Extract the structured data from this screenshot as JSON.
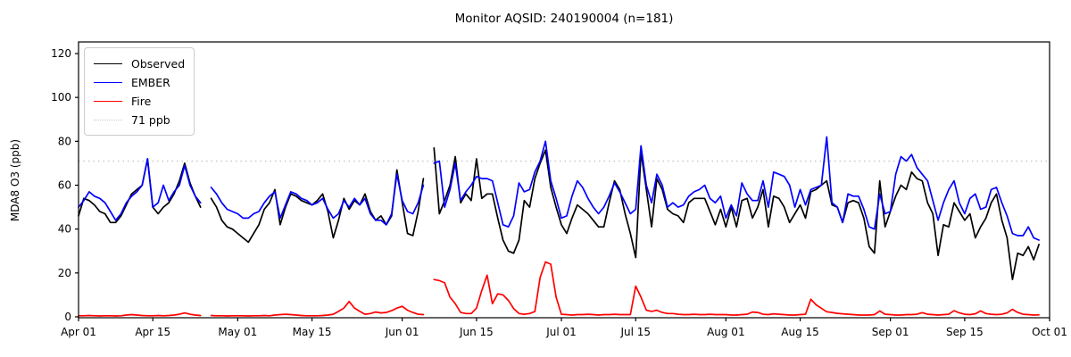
{
  "title": "Monitor AQSID: 240190004 (n=181)",
  "chart_data": {
    "type": "line",
    "title": "Monitor AQSID: 240190004 (n=181)",
    "xlabel": "",
    "ylabel": "MDA8 O3 (ppb)",
    "ylim": [
      0,
      125
    ],
    "yticks": [
      0,
      20,
      40,
      60,
      80,
      100,
      120
    ],
    "grid": false,
    "legend_position": "upper left",
    "x_unit": "day index from Apr 01",
    "xticks": [
      {
        "day": 0,
        "label": "Apr 01"
      },
      {
        "day": 14,
        "label": "Apr 15"
      },
      {
        "day": 30,
        "label": "May 01"
      },
      {
        "day": 44,
        "label": "May 15"
      },
      {
        "day": 61,
        "label": "Jun 01"
      },
      {
        "day": 75,
        "label": "Jun 15"
      },
      {
        "day": 91,
        "label": "Jul 01"
      },
      {
        "day": 105,
        "label": "Jul 15"
      },
      {
        "day": 122,
        "label": "Aug 01"
      },
      {
        "day": 136,
        "label": "Aug 15"
      },
      {
        "day": 153,
        "label": "Sep 01"
      },
      {
        "day": 167,
        "label": "Sep 15"
      },
      {
        "day": 183,
        "label": "Oct 01"
      }
    ],
    "threshold": {
      "value": 71,
      "label": "71 ppb",
      "color": "#c8c8c8",
      "style": "dotted"
    },
    "legend": [
      {
        "label": "Observed",
        "color": "#000000",
        "style": "solid"
      },
      {
        "label": "EMBER",
        "color": "#0000ff",
        "style": "solid"
      },
      {
        "label": "Fire",
        "color": "#ff0000",
        "style": "solid"
      },
      {
        "label": "71 ppb",
        "color": "#c8c8c8",
        "style": "dotted"
      }
    ],
    "series": [
      {
        "name": "Observed",
        "color": "#000000",
        "values": [
          46,
          54,
          53,
          51,
          48,
          47,
          43,
          43,
          46,
          51,
          56,
          58,
          60,
          72,
          50,
          47,
          50,
          52,
          56,
          62,
          70,
          61,
          55,
          50,
          null,
          54,
          50,
          44,
          41,
          40,
          38,
          36,
          34,
          38,
          42,
          49,
          52,
          58,
          42,
          50,
          56,
          55,
          53,
          52,
          51,
          53,
          56,
          48,
          36,
          44,
          54,
          49,
          53,
          51,
          56,
          48,
          44,
          46,
          42,
          46,
          67,
          52,
          38,
          37,
          48,
          63,
          null,
          77,
          47,
          53,
          60,
          73,
          52,
          56,
          53,
          72,
          54,
          56,
          56,
          45,
          35,
          30,
          29,
          35,
          53,
          50,
          63,
          70,
          76,
          59,
          50,
          42,
          38,
          45,
          51,
          49,
          47,
          44,
          41,
          41,
          52,
          62,
          58,
          47,
          38,
          27,
          75,
          58,
          41,
          63,
          58,
          49,
          47,
          46,
          43,
          52,
          54,
          54,
          54,
          48,
          42,
          49,
          41,
          50,
          41,
          53,
          54,
          45,
          50,
          58,
          41,
          55,
          54,
          50,
          43,
          47,
          51,
          45,
          57,
          58,
          60,
          62,
          51,
          50,
          43,
          52,
          53,
          52,
          45,
          32,
          29,
          62,
          41,
          48,
          55,
          60,
          58,
          66,
          63,
          62,
          52,
          47,
          28,
          42,
          41,
          52,
          48,
          44,
          47,
          36,
          41,
          45,
          52,
          56,
          44,
          36,
          17,
          29,
          28,
          32,
          26,
          33
        ]
      },
      {
        "name": "EMBER",
        "color": "#0000ff",
        "values": [
          50,
          53,
          57,
          55,
          54,
          52,
          48,
          44,
          47,
          52,
          55,
          57,
          60,
          72,
          50,
          52,
          60,
          53,
          57,
          60,
          69,
          60,
          55,
          52,
          null,
          59,
          56,
          52,
          49,
          48,
          47,
          45,
          45,
          47,
          48,
          52,
          55,
          57,
          45,
          51,
          57,
          56,
          54,
          53,
          51,
          52,
          54,
          49,
          45,
          47,
          53,
          50,
          54,
          51,
          54,
          47,
          44,
          44,
          42,
          47,
          65,
          53,
          48,
          47,
          52,
          60,
          null,
          70,
          71,
          50,
          58,
          70,
          53,
          57,
          60,
          64,
          63,
          63,
          62,
          52,
          42,
          41,
          46,
          61,
          57,
          58,
          66,
          71,
          80,
          62,
          54,
          45,
          46,
          55,
          62,
          59,
          54,
          50,
          47,
          50,
          55,
          61,
          57,
          52,
          47,
          49,
          78,
          60,
          52,
          65,
          60,
          50,
          52,
          50,
          51,
          55,
          57,
          58,
          60,
          54,
          52,
          55,
          45,
          51,
          46,
          61,
          56,
          53,
          53,
          62,
          50,
          66,
          65,
          64,
          60,
          50,
          58,
          51,
          58,
          59,
          60,
          82,
          52,
          50,
          43,
          56,
          55,
          55,
          49,
          41,
          40,
          56,
          47,
          48,
          65,
          73,
          71,
          74,
          68,
          65,
          62,
          53,
          44,
          52,
          58,
          62,
          52,
          47,
          54,
          56,
          49,
          50,
          58,
          59,
          52,
          46,
          38,
          37,
          37,
          41,
          36,
          35
        ]
      },
      {
        "name": "Fire",
        "color": "#ff0000",
        "values": [
          0.5,
          0.5,
          0.6,
          0.5,
          0.4,
          0.5,
          0.5,
          0.4,
          0.5,
          0.8,
          1,
          0.8,
          0.6,
          0.5,
          0.5,
          0.6,
          0.5,
          0.6,
          0.8,
          1.2,
          1.8,
          1.2,
          0.8,
          0.6,
          null,
          0.6,
          0.5,
          0.5,
          0.4,
          0.5,
          0.5,
          0.5,
          0.4,
          0.5,
          0.5,
          0.6,
          0.5,
          0.8,
          1,
          1.2,
          1,
          0.8,
          0.6,
          0.5,
          0.5,
          0.5,
          0.6,
          0.8,
          1.2,
          2.5,
          4,
          7,
          4,
          2.5,
          1.2,
          1.5,
          2.2,
          1.8,
          2,
          2.8,
          4,
          4.8,
          3,
          2,
          1.2,
          1,
          null,
          17,
          16.5,
          15.5,
          9,
          6,
          2,
          1.5,
          1.5,
          4,
          12,
          19,
          6,
          10.5,
          10,
          7.5,
          3.8,
          1.5,
          1.2,
          1.5,
          2.4,
          18,
          25,
          24,
          9,
          1.2,
          1,
          0.8,
          1,
          1,
          1.2,
          1,
          0.8,
          1,
          1,
          1.2,
          1,
          1,
          1,
          14,
          9,
          3,
          2.5,
          3,
          2,
          1.5,
          1.5,
          1.2,
          1,
          1,
          1.2,
          1,
          1,
          1.2,
          1,
          1,
          1,
          0.8,
          0.8,
          1,
          1.2,
          2.2,
          2,
          1.2,
          1,
          1.4,
          1.2,
          1,
          0.8,
          0.8,
          1,
          1.2,
          8,
          5.5,
          3.9,
          2.3,
          2,
          1.6,
          1.4,
          1.2,
          1,
          0.8,
          0.8,
          0.8,
          1,
          2.7,
          1.2,
          1,
          0.8,
          0.8,
          1,
          1,
          1.2,
          1.9,
          1.2,
          1,
          0.8,
          1,
          1.2,
          2.8,
          1.8,
          1.2,
          1,
          1.4,
          2.7,
          1.5,
          1.2,
          1,
          1.2,
          1.8,
          3.4,
          2,
          1.2,
          1,
          0.8,
          0.9
        ]
      }
    ]
  }
}
